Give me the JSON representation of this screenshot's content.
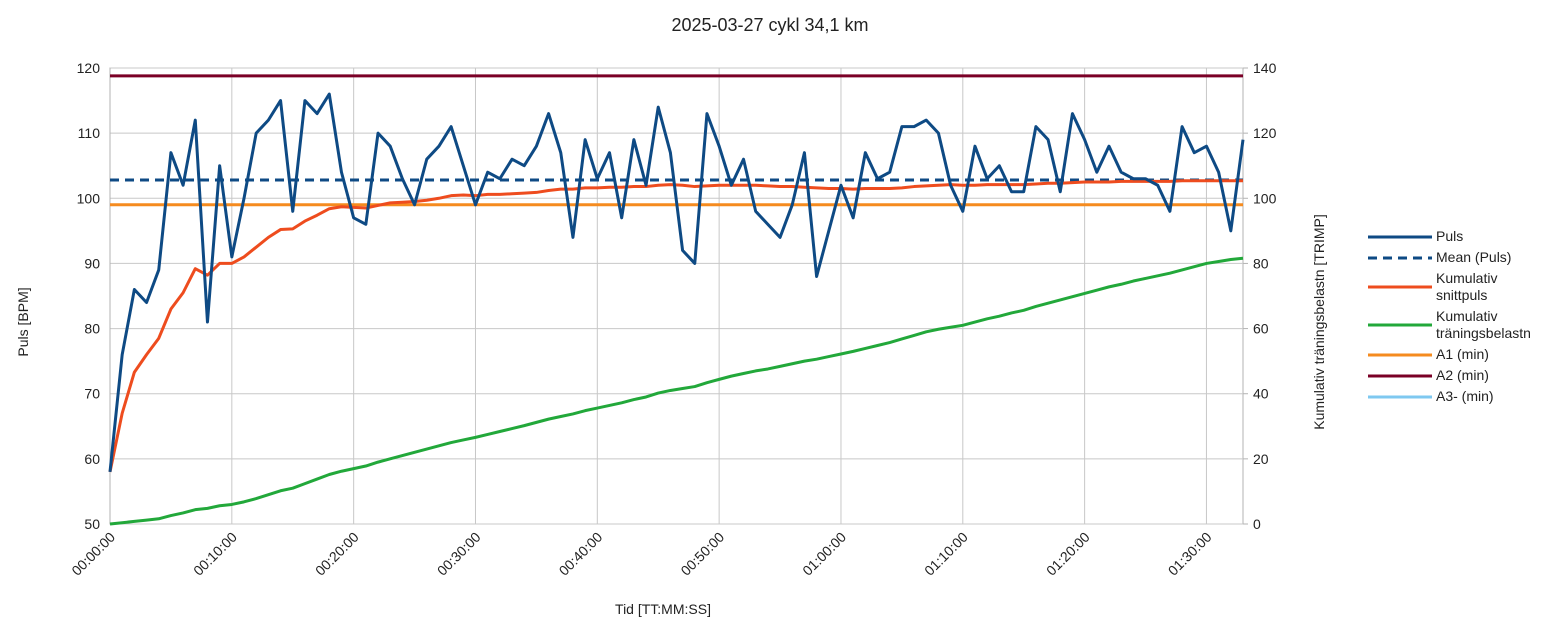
{
  "chart_data": {
    "type": "line",
    "title": "2025-03-27 cykl 34,1 km",
    "xlabel": "Tid [TT:MM:SS]",
    "ylabel": "Puls [BPM]",
    "y2label": "Kumulativ träningsbelastn [TRIMP]",
    "x": [
      0,
      60,
      120,
      180,
      240,
      300,
      360,
      420,
      480,
      540,
      600,
      660,
      720,
      780,
      840,
      900,
      960,
      1020,
      1080,
      1140,
      1200,
      1260,
      1320,
      1380,
      1440,
      1500,
      1560,
      1620,
      1680,
      1740,
      1800,
      1860,
      1920,
      1980,
      2040,
      2100,
      2160,
      2220,
      2280,
      2340,
      2400,
      2460,
      2520,
      2580,
      2640,
      2700,
      2760,
      2820,
      2880,
      2940,
      3000,
      3060,
      3120,
      3180,
      3240,
      3300,
      3360,
      3420,
      3480,
      3540,
      3600,
      3660,
      3720,
      3780,
      3840,
      3900,
      3960,
      4020,
      4080,
      4140,
      4200,
      4260,
      4320,
      4380,
      4440,
      4500,
      4560,
      4620,
      4680,
      4740,
      4800,
      4860,
      4920,
      4980,
      5040,
      5100,
      5160,
      5220,
      5280,
      5340,
      5400,
      5460,
      5520,
      5580
    ],
    "xlim": [
      0,
      5580
    ],
    "xticks": [
      {
        "value": 0,
        "label": "00:00:00"
      },
      {
        "value": 600,
        "label": "00:10:00"
      },
      {
        "value": 1200,
        "label": "00:20:00"
      },
      {
        "value": 1800,
        "label": "00:30:00"
      },
      {
        "value": 2400,
        "label": "00:40:00"
      },
      {
        "value": 3000,
        "label": "00:50:00"
      },
      {
        "value": 3600,
        "label": "01:00:00"
      },
      {
        "value": 4200,
        "label": "01:10:00"
      },
      {
        "value": 4800,
        "label": "01:20:00"
      },
      {
        "value": 5400,
        "label": "01:30:00"
      }
    ],
    "ylim": [
      50,
      120
    ],
    "yticks": [
      50,
      60,
      70,
      80,
      90,
      100,
      110,
      120
    ],
    "y2lim": [
      0,
      140
    ],
    "y2ticks": [
      0,
      20,
      40,
      60,
      80,
      100,
      120,
      140
    ],
    "grid": true,
    "series": [
      {
        "name": "Puls",
        "color": "#0e4a84",
        "values": [
          58,
          76,
          86,
          84,
          89,
          107,
          102,
          112,
          81,
          105,
          91,
          100,
          110,
          112,
          115,
          98,
          115,
          113,
          116,
          104,
          97,
          96,
          110,
          108,
          103,
          99,
          106,
          108,
          111,
          105,
          99,
          104,
          103,
          106,
          105,
          108,
          113,
          107,
          94,
          109,
          103,
          107,
          97,
          109,
          102,
          114,
          107,
          92,
          90,
          113,
          108,
          102,
          106,
          98,
          96,
          94,
          99,
          107,
          88,
          95,
          102,
          97,
          107,
          103,
          104,
          111,
          111,
          112,
          110,
          102,
          98,
          108,
          103,
          105,
          101,
          101,
          111,
          109,
          101,
          113,
          109,
          104,
          108,
          104,
          103,
          103,
          102,
          98,
          111,
          107,
          108,
          104,
          95,
          109
        ]
      },
      {
        "name": "Mean (Puls)",
        "color": "#0e4a84",
        "dashed": true,
        "value": 102.8
      },
      {
        "name": "Kumulativ snittpuls",
        "color": "#ee4c1e",
        "values": [
          58,
          67,
          73.3,
          76,
          78.5,
          83,
          85.5,
          89.2,
          88.2,
          90,
          90,
          91,
          92.5,
          94,
          95.2,
          95.3,
          96.5,
          97.4,
          98.4,
          98.7,
          98.6,
          98.5,
          98.9,
          99.3,
          99.4,
          99.5,
          99.7,
          100,
          100.4,
          100.5,
          100.4,
          100.6,
          100.6,
          100.7,
          100.8,
          100.9,
          101.2,
          101.4,
          101.4,
          101.6,
          101.6,
          101.7,
          101.7,
          101.8,
          101.8,
          102,
          102.1,
          102,
          101.8,
          101.9,
          102,
          102,
          102,
          102,
          101.9,
          101.8,
          101.8,
          101.7,
          101.6,
          101.5,
          101.5,
          101.4,
          101.5,
          101.5,
          101.5,
          101.6,
          101.8,
          101.9,
          102,
          102.1,
          102,
          102,
          102.1,
          102.1,
          102.1,
          102.1,
          102.2,
          102.3,
          102.3,
          102.4,
          102.5,
          102.5,
          102.5,
          102.6,
          102.6,
          102.6,
          102.6,
          102.6,
          102.7,
          102.7,
          102.7,
          102.7,
          102.7,
          102.7
        ]
      },
      {
        "name": "Kumulativ träningsbelastn",
        "color": "#22a83a",
        "axis": "y2",
        "values": [
          0,
          0.4,
          0.8,
          1.2,
          1.6,
          2.6,
          3.4,
          4.4,
          4.8,
          5.6,
          6,
          6.8,
          7.8,
          9,
          10.2,
          11,
          12.4,
          13.8,
          15.2,
          16.2,
          17,
          17.8,
          19,
          20,
          21,
          22,
          23,
          24,
          25,
          25.8,
          26.6,
          27.5,
          28.4,
          29.3,
          30.2,
          31.2,
          32.2,
          33,
          33.8,
          34.8,
          35.6,
          36.4,
          37.2,
          38.2,
          39,
          40.2,
          41,
          41.6,
          42.2,
          43.4,
          44.4,
          45.4,
          46.2,
          47,
          47.6,
          48.4,
          49.2,
          50,
          50.6,
          51.4,
          52.2,
          53,
          53.9,
          54.8,
          55.7,
          56.8,
          57.9,
          59,
          59.8,
          60.4,
          61,
          62,
          63,
          63.8,
          64.8,
          65.6,
          66.8,
          67.8,
          68.8,
          69.8,
          70.8,
          71.8,
          72.8,
          73.6,
          74.6,
          75.4,
          76.2,
          77,
          78,
          79,
          80,
          80.6,
          81.2,
          81.6
        ]
      },
      {
        "name": "A1 (min)",
        "color": "#f58b1f",
        "value": 99
      },
      {
        "name": "A2 (min)",
        "color": "#7a0026",
        "value": 118.8
      },
      {
        "name": "A3- (min)",
        "color": "#7ec8f0",
        "value": null
      }
    ]
  }
}
